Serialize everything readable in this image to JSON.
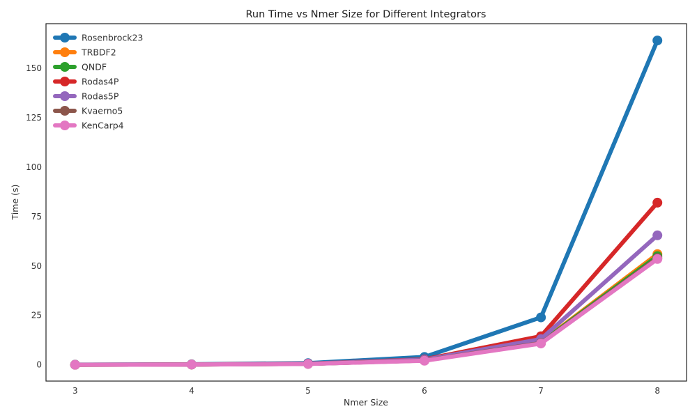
{
  "chart_data": {
    "type": "line",
    "title": "Run Time vs Nmer Size for Different Integrators",
    "xlabel": "Nmer Size",
    "ylabel": "Time (s)",
    "x": [
      3,
      4,
      5,
      6,
      7,
      8
    ],
    "xlim": [
      2.75,
      8.25
    ],
    "ylim": [
      -8.2,
      172.5
    ],
    "xticks": [
      3,
      4,
      5,
      6,
      7,
      8
    ],
    "yticks": [
      0,
      25,
      50,
      75,
      100,
      125,
      150
    ],
    "grid": false,
    "legend_position": "upper-left",
    "series": [
      {
        "name": "Rosenbrock23",
        "color": "#1f77b4",
        "values": [
          0.1,
          0.3,
          0.9,
          4.0,
          24.0,
          164.0
        ]
      },
      {
        "name": "TRBDF2",
        "color": "#ff7f0e",
        "values": [
          0.05,
          0.15,
          0.5,
          2.3,
          11.5,
          56.0
        ]
      },
      {
        "name": "QNDF",
        "color": "#2ca02c",
        "values": [
          0.05,
          0.15,
          0.5,
          2.2,
          11.2,
          55.0
        ]
      },
      {
        "name": "Rodas4P",
        "color": "#d62728",
        "values": [
          0.05,
          0.2,
          0.6,
          2.8,
          14.5,
          82.0
        ]
      },
      {
        "name": "Rodas5P",
        "color": "#9467bd",
        "values": [
          0.05,
          0.2,
          0.6,
          2.6,
          13.0,
          65.5
        ]
      },
      {
        "name": "Kvaerno5",
        "color": "#8c564b",
        "values": [
          0.05,
          0.15,
          0.5,
          2.2,
          11.0,
          54.0
        ]
      },
      {
        "name": "KenCarp4",
        "color": "#e377c2",
        "values": [
          0.05,
          0.15,
          0.45,
          2.1,
          10.8,
          53.5
        ]
      }
    ]
  }
}
